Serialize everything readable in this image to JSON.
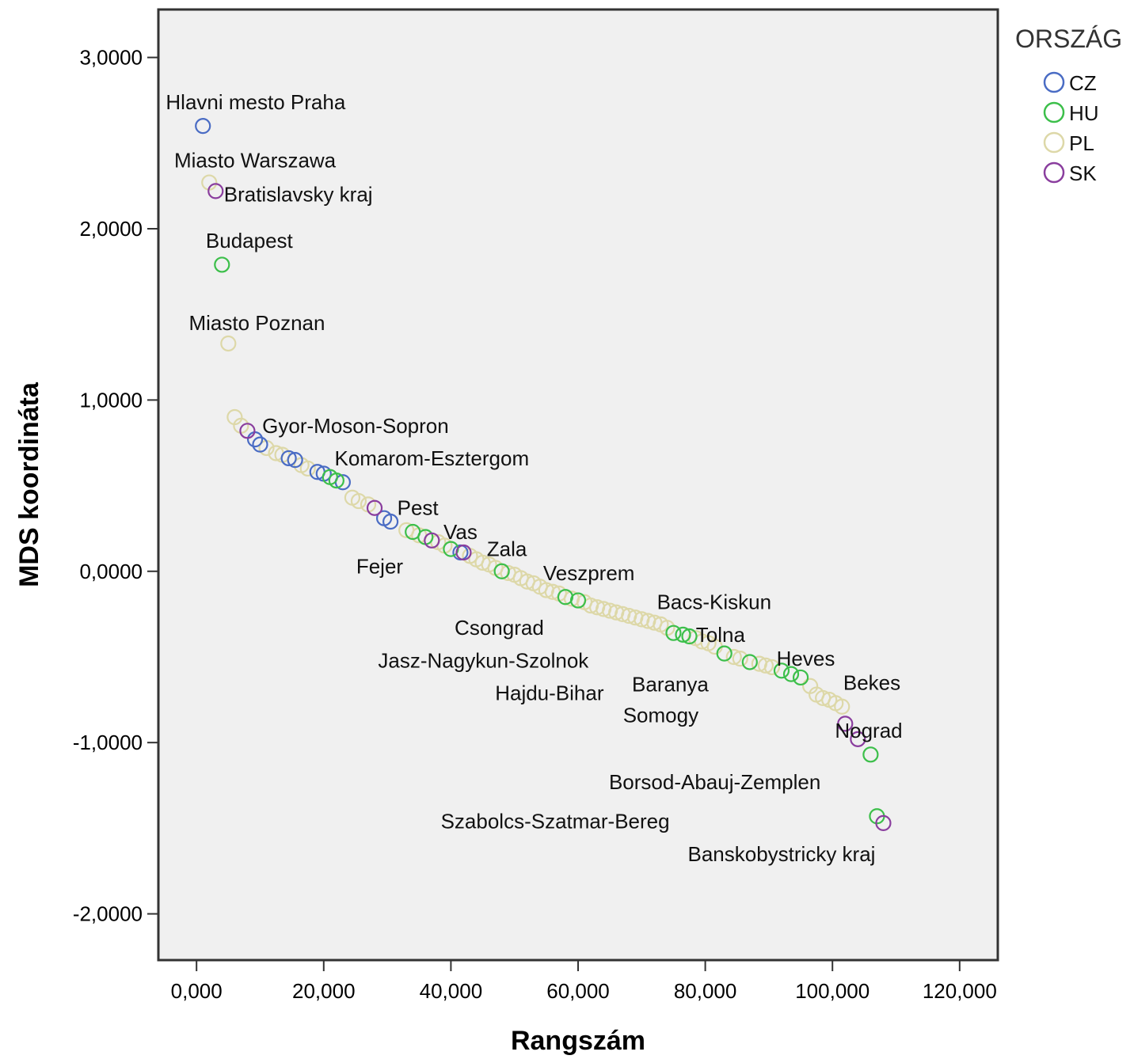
{
  "chart_data": {
    "type": "scatter",
    "xlabel": "Rangszám",
    "ylabel": "MDS koordináta",
    "xlim": [
      -6,
      126
    ],
    "ylim": [
      -2.27,
      3.28
    ],
    "x_ticks": [
      {
        "value": 0,
        "label": "0,000"
      },
      {
        "value": 20,
        "label": "20,000"
      },
      {
        "value": 40,
        "label": "40,000"
      },
      {
        "value": 60,
        "label": "60,000"
      },
      {
        "value": 80,
        "label": "80,000"
      },
      {
        "value": 100,
        "label": "100,000"
      },
      {
        "value": 120,
        "label": "120,000"
      }
    ],
    "y_ticks": [
      {
        "value": 3,
        "label": "3,0000"
      },
      {
        "value": 2,
        "label": "2,0000"
      },
      {
        "value": 1,
        "label": "1,0000"
      },
      {
        "value": 0,
        "label": "0,0000"
      },
      {
        "value": -1,
        "label": "-1,0000"
      },
      {
        "value": -2,
        "label": "-2,0000"
      }
    ],
    "legend": {
      "title": "ORSZÁG",
      "position": "top-right",
      "entries": [
        {
          "key": "CZ",
          "label": "CZ",
          "color": "#4a6cc4"
        },
        {
          "key": "HU",
          "label": "HU",
          "color": "#3cbf4a"
        },
        {
          "key": "PL",
          "label": "PL",
          "color": "#ddd8a8"
        },
        {
          "key": "SK",
          "label": "SK",
          "color": "#8a3e9e"
        }
      ]
    },
    "plot_background": "#f0f0f0",
    "series": [
      {
        "name": "CZ",
        "points": [
          [
            1,
            2.6
          ],
          [
            9.2,
            0.77
          ],
          [
            10,
            0.74
          ],
          [
            14.5,
            0.66
          ],
          [
            15.5,
            0.65
          ],
          [
            19,
            0.58
          ],
          [
            20,
            0.57
          ],
          [
            23,
            0.52
          ],
          [
            29.5,
            0.31
          ],
          [
            30.5,
            0.29
          ],
          [
            41.5,
            0.11
          ]
        ]
      },
      {
        "name": "HU",
        "points": [
          [
            4,
            1.79
          ],
          [
            21,
            0.55
          ],
          [
            22,
            0.53
          ],
          [
            34,
            0.23
          ],
          [
            36,
            0.2
          ],
          [
            40,
            0.13
          ],
          [
            48,
            0.0
          ],
          [
            58,
            -0.15
          ],
          [
            60,
            -0.17
          ],
          [
            75,
            -0.36
          ],
          [
            76.5,
            -0.37
          ],
          [
            77.5,
            -0.38
          ],
          [
            83,
            -0.48
          ],
          [
            87,
            -0.53
          ],
          [
            92,
            -0.58
          ],
          [
            93.5,
            -0.6
          ],
          [
            95,
            -0.62
          ],
          [
            106,
            -1.07
          ],
          [
            107,
            -1.43
          ]
        ]
      },
      {
        "name": "PL",
        "points": [
          [
            2,
            2.27
          ],
          [
            5,
            1.33
          ],
          [
            6,
            0.9
          ],
          [
            7,
            0.85
          ],
          [
            11,
            0.72
          ],
          [
            12.5,
            0.69
          ],
          [
            13.5,
            0.68
          ],
          [
            16.5,
            0.62
          ],
          [
            17.5,
            0.6
          ],
          [
            24.5,
            0.43
          ],
          [
            25.5,
            0.41
          ],
          [
            27,
            0.39
          ],
          [
            33,
            0.24
          ],
          [
            35,
            0.21
          ],
          [
            38,
            0.17
          ],
          [
            39,
            0.15
          ],
          [
            43,
            0.09
          ],
          [
            44,
            0.07
          ],
          [
            45,
            0.05
          ],
          [
            46,
            0.04
          ],
          [
            47,
            0.02
          ],
          [
            49,
            -0.01
          ],
          [
            50,
            -0.02
          ],
          [
            51,
            -0.04
          ],
          [
            52,
            -0.06
          ],
          [
            53,
            -0.07
          ],
          [
            54,
            -0.09
          ],
          [
            55,
            -0.11
          ],
          [
            56,
            -0.12
          ],
          [
            57,
            -0.13
          ],
          [
            59,
            -0.16
          ],
          [
            61,
            -0.18
          ],
          [
            62,
            -0.2
          ],
          [
            63,
            -0.21
          ],
          [
            64,
            -0.22
          ],
          [
            65,
            -0.23
          ],
          [
            66,
            -0.24
          ],
          [
            67,
            -0.25
          ],
          [
            68,
            -0.26
          ],
          [
            69,
            -0.27
          ],
          [
            70,
            -0.28
          ],
          [
            71,
            -0.29
          ],
          [
            72,
            -0.3
          ],
          [
            73,
            -0.31
          ],
          [
            74,
            -0.33
          ],
          [
            78.5,
            -0.39
          ],
          [
            79.5,
            -0.41
          ],
          [
            80.5,
            -0.42
          ],
          [
            81.5,
            -0.44
          ],
          [
            84.5,
            -0.5
          ],
          [
            85.5,
            -0.51
          ],
          [
            88.5,
            -0.54
          ],
          [
            89.5,
            -0.55
          ],
          [
            90.5,
            -0.56
          ],
          [
            96.5,
            -0.67
          ],
          [
            97.5,
            -0.72
          ],
          [
            98.5,
            -0.74
          ],
          [
            99.5,
            -0.75
          ],
          [
            100.5,
            -0.77
          ],
          [
            101.5,
            -0.79
          ]
        ]
      },
      {
        "name": "SK",
        "points": [
          [
            3,
            2.22
          ],
          [
            8,
            0.82
          ],
          [
            28,
            0.37
          ],
          [
            37,
            0.18
          ],
          [
            42,
            0.11
          ],
          [
            102,
            -0.89
          ],
          [
            104,
            -0.98
          ],
          [
            108,
            -1.47
          ]
        ]
      }
    ],
    "annotations": [
      {
        "text": "Hlavni mesto Praha",
        "x": 9.3,
        "y": 2.74
      },
      {
        "text": "Miasto Warszawa",
        "x": 9.2,
        "y": 2.4
      },
      {
        "text": "Bratislavsky kraj",
        "x": 16,
        "y": 2.2
      },
      {
        "text": "Budapest",
        "x": 8.3,
        "y": 1.93
      },
      {
        "text": "Miasto Poznan",
        "x": 9.5,
        "y": 1.45
      },
      {
        "text": "Gyor-Moson-Sopron",
        "x": 25,
        "y": 0.85
      },
      {
        "text": "Komarom-Esztergom",
        "x": 37,
        "y": 0.66
      },
      {
        "text": "Pest",
        "x": 34.8,
        "y": 0.37
      },
      {
        "text": "Vas",
        "x": 41.5,
        "y": 0.23
      },
      {
        "text": "Zala",
        "x": 48.8,
        "y": 0.13
      },
      {
        "text": "Fejer",
        "x": 28.8,
        "y": 0.03
      },
      {
        "text": "Veszprem",
        "x": 61.7,
        "y": -0.01
      },
      {
        "text": "Bacs-Kiskun",
        "x": 81.4,
        "y": -0.18
      },
      {
        "text": "Csongrad",
        "x": 47.6,
        "y": -0.33
      },
      {
        "text": "Tolna",
        "x": 82.4,
        "y": -0.37
      },
      {
        "text": "Jasz-Nagykun-Szolnok",
        "x": 45.1,
        "y": -0.52
      },
      {
        "text": "Heves",
        "x": 95.8,
        "y": -0.51
      },
      {
        "text": "Bekes",
        "x": 106.2,
        "y": -0.65
      },
      {
        "text": "Hajdu-Bihar",
        "x": 55.5,
        "y": -0.71
      },
      {
        "text": "Baranya",
        "x": 74.5,
        "y": -0.66
      },
      {
        "text": "Somogy",
        "x": 73,
        "y": -0.84
      },
      {
        "text": "Nograd",
        "x": 105.7,
        "y": -0.93
      },
      {
        "text": "Borsod-Abauj-Zemplen",
        "x": 81.5,
        "y": -1.23
      },
      {
        "text": "Szabolcs-Szatmar-Bereg",
        "x": 56.4,
        "y": -1.46
      },
      {
        "text": "Banskobystricky kraj",
        "x": 92,
        "y": -1.65
      }
    ]
  }
}
